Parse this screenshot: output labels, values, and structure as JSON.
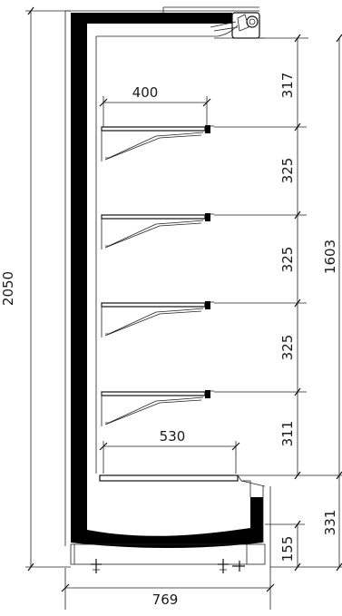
{
  "dimensions": {
    "overall_height": "2050",
    "overall_depth": "769",
    "shelf_depth_top": "400",
    "deck_depth": "530",
    "display_height": "1603",
    "spacing_1": "317",
    "spacing_2": "325",
    "spacing_3": "325",
    "spacing_4": "325",
    "spacing_5": "311",
    "base_height": "331",
    "base_inner": "155"
  },
  "colors": {
    "line": "#222222",
    "wall": "#000000",
    "background": "#ffffff"
  }
}
